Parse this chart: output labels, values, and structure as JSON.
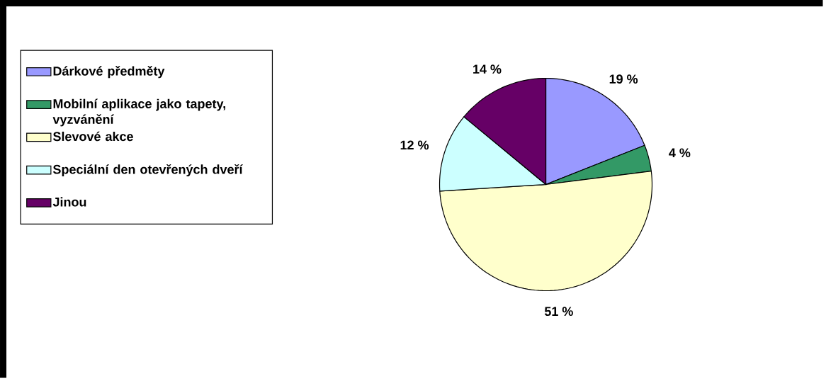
{
  "chart_data": {
    "type": "pie",
    "categories": [
      "Dárkové předměty",
      "Mobilní aplikace jako tapety, vyzvánění",
      "Slevové akce",
      "Speciální den otevřených dveří",
      "Jinou"
    ],
    "values": [
      19,
      4,
      51,
      12,
      14
    ],
    "colors": [
      "#9999ff",
      "#339966",
      "#ffffcc",
      "#ccffff",
      "#660066"
    ],
    "value_labels": [
      "19 %",
      "4 %",
      "51 %",
      "12 %",
      "14 %"
    ],
    "legend": "left"
  }
}
